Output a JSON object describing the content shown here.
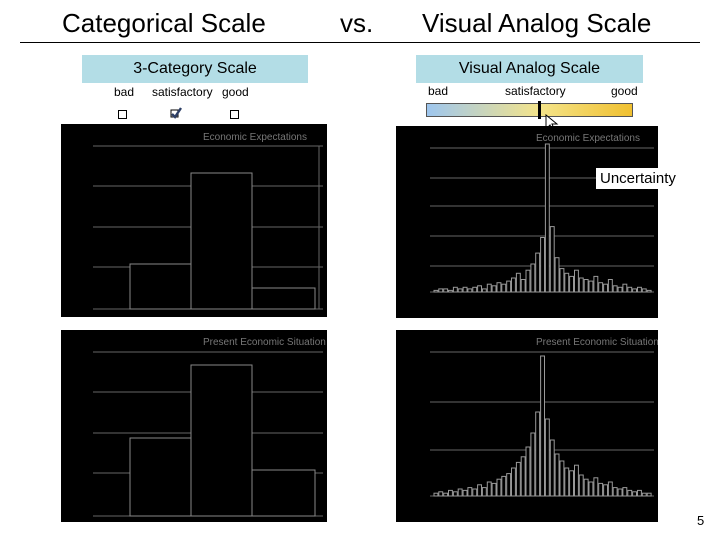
{
  "header": {
    "left_title": "Categorical Scale",
    "middle_title": "vs.",
    "right_title": "Visual Analog Scale"
  },
  "categorical": {
    "box_label": "3-Category Scale",
    "option_labels": [
      "bad",
      "satisfactory",
      "good"
    ]
  },
  "vas": {
    "box_label": "Visual Analog Scale",
    "anchor_labels": [
      "bad",
      "satisfactory",
      "good"
    ],
    "gradient_colors": [
      "#9ec6ee",
      "#f4e48a",
      "#f0c030"
    ]
  },
  "annotation": {
    "uncertainty_label": "Uncertainty"
  },
  "charts": {
    "top_left_title": "Economic Expectations",
    "top_right_title": "Economic Expectations",
    "bottom_left_title": "Present Economic Situation",
    "bottom_right_title": "Present Economic Situation"
  },
  "chart_data": [
    {
      "type": "bar",
      "title": "Economic Expectations",
      "categories": [
        "bad",
        "satisfactory",
        "good"
      ],
      "values": [
        0.22,
        0.6,
        0.1
      ]
    },
    {
      "type": "bar",
      "title": "Present Economic Situation",
      "categories": [
        "bad",
        "satisfactory",
        "good"
      ],
      "values": [
        0.4,
        0.8,
        0.2
      ]
    },
    {
      "type": "bar",
      "title": "Economic Expectations",
      "values": [
        0.01,
        0.02,
        0.02,
        0.01,
        0.03,
        0.02,
        0.03,
        0.02,
        0.03,
        0.04,
        0.02,
        0.05,
        0.04,
        0.06,
        0.05,
        0.07,
        0.09,
        0.12,
        0.08,
        0.14,
        0.18,
        0.25,
        0.35,
        0.95,
        0.42,
        0.22,
        0.15,
        0.12,
        0.1,
        0.14,
        0.09,
        0.08,
        0.07,
        0.1,
        0.06,
        0.05,
        0.08,
        0.04,
        0.03,
        0.05,
        0.03,
        0.02,
        0.03,
        0.02,
        0.01
      ]
    },
    {
      "type": "bar",
      "title": "Present Economic Situation",
      "values": [
        0.02,
        0.03,
        0.02,
        0.04,
        0.03,
        0.05,
        0.04,
        0.06,
        0.05,
        0.08,
        0.06,
        0.1,
        0.09,
        0.12,
        0.14,
        0.16,
        0.2,
        0.24,
        0.28,
        0.35,
        0.45,
        0.6,
        1.0,
        0.55,
        0.4,
        0.3,
        0.25,
        0.2,
        0.18,
        0.22,
        0.15,
        0.12,
        0.1,
        0.13,
        0.09,
        0.08,
        0.1,
        0.06,
        0.05,
        0.06,
        0.04,
        0.03,
        0.04,
        0.02,
        0.02
      ]
    }
  ],
  "footer": {
    "page_number": "5"
  }
}
